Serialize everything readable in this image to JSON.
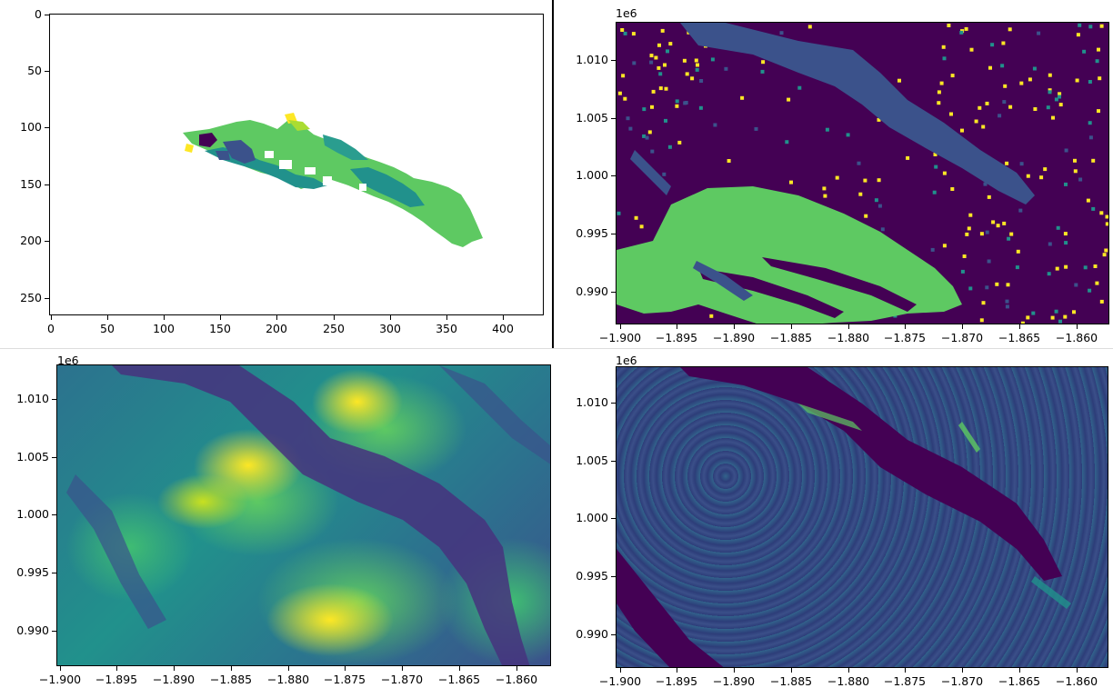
{
  "chart_data": [
    {
      "type": "heatmap",
      "xlim": [
        0,
        435
      ],
      "ylim": [
        265,
        0
      ],
      "xticks": [
        "0",
        "50",
        "100",
        "150",
        "200",
        "250",
        "300",
        "350",
        "400"
      ],
      "yticks": [
        "0",
        "50",
        "100",
        "150",
        "200",
        "250"
      ],
      "description_color": "viridis categorical"
    },
    {
      "type": "heatmap",
      "xlim": [
        -1.9005,
        -1.8577
      ],
      "ylim": [
        0.9867,
        1.0128
      ],
      "offset_label": "1e6",
      "xticks": [
        "−1.900",
        "−1.895",
        "−1.890",
        "−1.885",
        "−1.880",
        "−1.875",
        "−1.870",
        "−1.865",
        "−1.860"
      ],
      "yticks": [
        "1.010",
        "1.005",
        "1.000",
        "0.995",
        "0.990"
      ],
      "colormap": "viridis"
    },
    {
      "type": "heatmap",
      "xlim": [
        -1.9005,
        -1.8577
      ],
      "ylim": [
        0.9867,
        1.0128
      ],
      "offset_label": "1e6",
      "xticks": [
        "−1.900",
        "−1.895",
        "−1.890",
        "−1.885",
        "−1.880",
        "−1.875",
        "−1.870",
        "−1.865",
        "−1.860"
      ],
      "yticks": [
        "1.010",
        "1.005",
        "1.000",
        "0.995",
        "0.990"
      ],
      "colormap": "viridis"
    },
    {
      "type": "heatmap",
      "xlim": [
        -1.9005,
        -1.8577
      ],
      "ylim": [
        0.9867,
        1.0128
      ],
      "offset_label": "1e6",
      "xticks": [
        "−1.900",
        "−1.895",
        "−1.890",
        "−1.885",
        "−1.880",
        "−1.875",
        "−1.870",
        "−1.865",
        "−1.860"
      ],
      "yticks": [
        "1.010",
        "1.005",
        "1.000",
        "0.995",
        "0.990"
      ],
      "colormap": "viridis"
    }
  ],
  "colors": {
    "viridis_dark": "#440154",
    "viridis_blue": "#3b528b",
    "viridis_teal": "#21918c",
    "viridis_green": "#5ec962",
    "viridis_yellow": "#fde725"
  }
}
